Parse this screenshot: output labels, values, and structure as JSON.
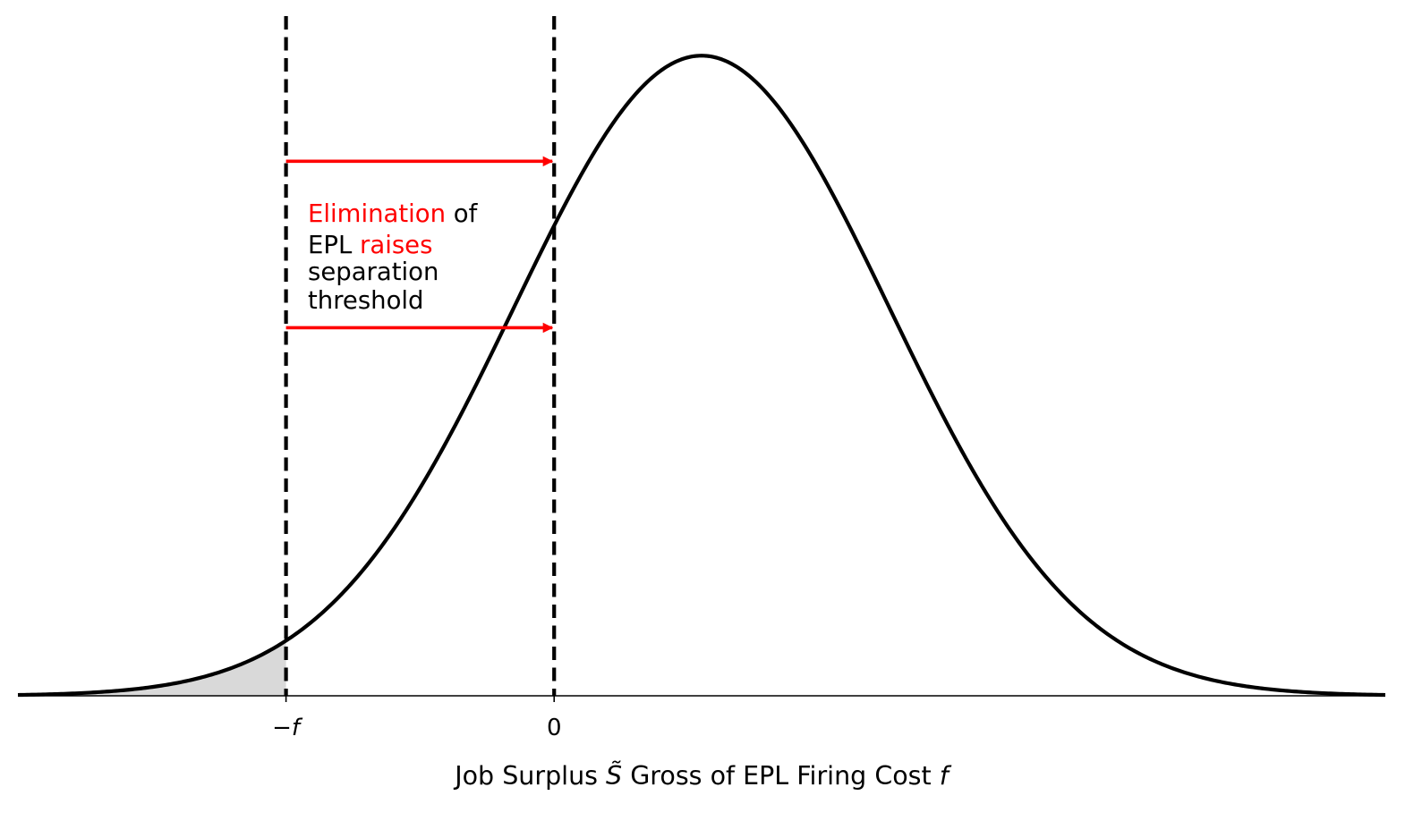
{
  "chart_data": {
    "type": "line",
    "title": "",
    "xlabel": {
      "prefix": "Job Surplus ",
      "symbol": "S̃",
      "middle": " Gross of EPL Firing Cost ",
      "variable": "f"
    },
    "ylabel": "",
    "xlim": [
      -3.1,
      2.0
    ],
    "ylim": [
      0,
      1.08
    ],
    "grid": false,
    "legend": "none",
    "curve": {
      "name": "",
      "distribution": "normal",
      "mean": -0.55,
      "sd": 0.7,
      "peak": 1.0,
      "color": "#000000"
    },
    "shaded_region": {
      "from": -3.1,
      "to": -2.1,
      "color": "#d9d9d9"
    },
    "thresholds": [
      {
        "x": -2.1,
        "label": "−f",
        "style": "dashed"
      },
      {
        "x": -1.1,
        "label": "0",
        "style": "dashed"
      }
    ],
    "arrows": [
      {
        "from": -2.1,
        "to": -1.1,
        "y": 0.835,
        "color": "#ff0000"
      },
      {
        "from": -2.1,
        "to": -1.1,
        "y": 0.575,
        "color": "#ff0000"
      }
    ],
    "annotation": {
      "lines": [
        [
          {
            "text": "Elimination",
            "color": "#ff0000"
          },
          {
            "text": " of",
            "color": "#000000"
          }
        ],
        [
          {
            "text": "EPL ",
            "color": "#000000"
          },
          {
            "text": "raises",
            "color": "#ff0000"
          }
        ],
        [
          {
            "text": "separation",
            "color": "#000000"
          }
        ],
        [
          {
            "text": "threshold",
            "color": "#000000"
          }
        ]
      ]
    }
  }
}
